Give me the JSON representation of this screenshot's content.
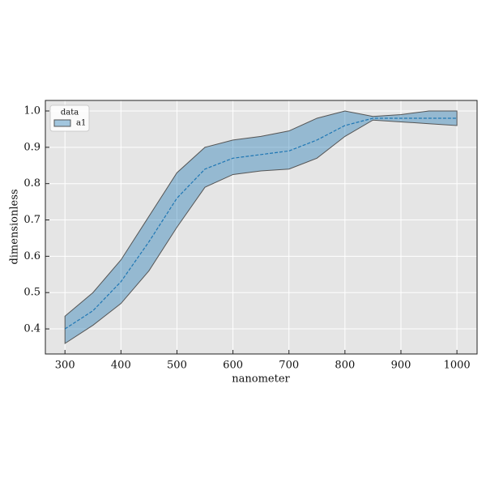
{
  "chart_data": {
    "type": "band",
    "xlabel": "nanometer",
    "ylabel": "dimensionless",
    "x": [
      300,
      350,
      400,
      450,
      500,
      550,
      600,
      650,
      700,
      750,
      800,
      850,
      900,
      950,
      1000
    ],
    "series": [
      {
        "name": "a1",
        "color": "#1f77b4",
        "values": [
          0.4,
          0.45,
          0.53,
          0.64,
          0.76,
          0.84,
          0.87,
          0.88,
          0.89,
          0.92,
          0.96,
          0.98,
          0.98,
          0.98,
          0.98
        ],
        "lower": [
          0.36,
          0.41,
          0.47,
          0.56,
          0.68,
          0.79,
          0.825,
          0.835,
          0.84,
          0.87,
          0.93,
          0.975,
          0.97,
          0.965,
          0.96
        ],
        "upper": [
          0.435,
          0.5,
          0.59,
          0.71,
          0.83,
          0.9,
          0.92,
          0.93,
          0.945,
          0.98,
          1.0,
          0.985,
          0.99,
          1.0,
          1.0
        ]
      }
    ],
    "legend_title": "data",
    "legend_loc": "upper left",
    "xlim": [
      265,
      1036
    ],
    "ylim": [
      0.331,
      1.029
    ],
    "xticks": [
      300,
      400,
      500,
      600,
      700,
      800,
      900,
      1000
    ],
    "yticks": [
      0.4,
      0.5,
      0.6,
      0.7,
      0.8,
      0.9,
      {
        "value": 1,
        "label": "1.0"
      }
    ],
    "grid": true
  }
}
